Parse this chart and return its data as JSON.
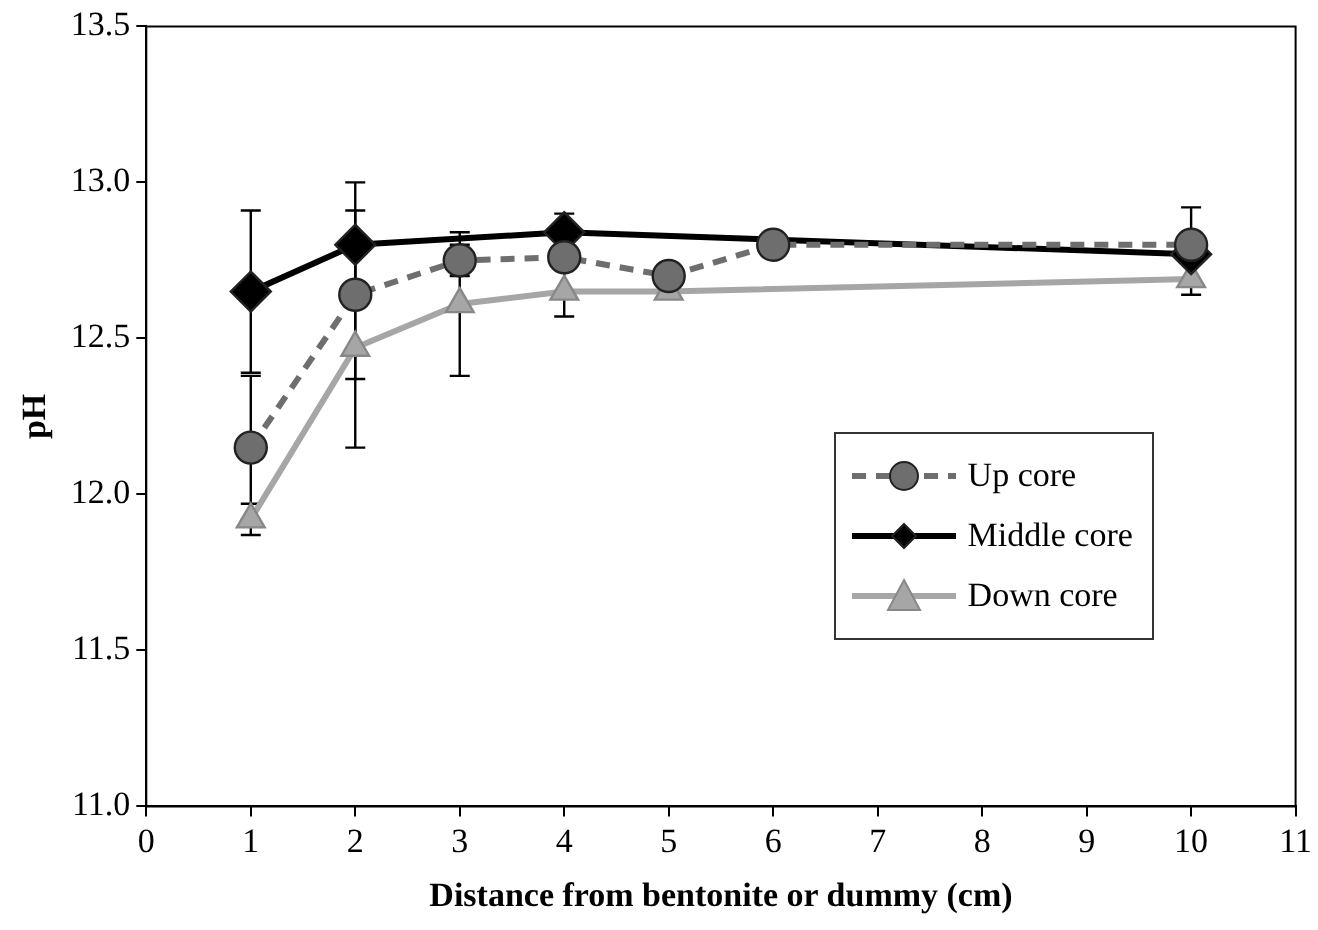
{
  "chart_data": {
    "type": "line",
    "xlabel": "Distance from bentonite or dummy (cm)",
    "ylabel": "pH",
    "xlim": [
      0,
      11
    ],
    "xticks": [
      0,
      1,
      2,
      3,
      4,
      5,
      6,
      7,
      8,
      9,
      10,
      11
    ],
    "ylim": [
      11.0,
      13.5
    ],
    "yticks": [
      {
        "value": 11,
        "label": "11.0"
      },
      {
        "value": 11.5,
        "label": "11.5"
      },
      {
        "value": 12,
        "label": "12.0"
      },
      {
        "value": 12.5,
        "label": "12.5"
      },
      {
        "value": 13,
        "label": "13.0"
      },
      {
        "value": 13.5,
        "label": "13.5"
      }
    ],
    "grid": false,
    "legend": "right",
    "series": [
      {
        "name": "Up core",
        "color": "#6e6e6e",
        "marker": "circle",
        "line_style": "dashed",
        "x": [
          1,
          2,
          3,
          4,
          5,
          6,
          10
        ],
        "values": [
          12.15,
          12.64,
          12.75,
          12.76,
          12.7,
          12.8,
          12.8
        ],
        "errors": [
          0.23,
          0.27,
          0.05,
          null,
          null,
          null,
          0.12
        ]
      },
      {
        "name": "Middle core",
        "color": "#000000",
        "marker": "diamond",
        "line_style": "solid",
        "x": [
          1,
          2,
          4,
          10
        ],
        "values": [
          12.65,
          12.8,
          12.84,
          12.77
        ],
        "errors": [
          0.26,
          0.2,
          0.06,
          null
        ]
      },
      {
        "name": "Down core",
        "color": "#a6a6a6",
        "marker": "triangle",
        "line_style": "solid",
        "x": [
          1,
          2,
          3,
          4,
          5,
          10
        ],
        "values": [
          11.92,
          12.47,
          12.61,
          12.65,
          12.65,
          12.69
        ],
        "errors": [
          0.05,
          0.32,
          0.23,
          0.08,
          null,
          0.05
        ]
      }
    ]
  }
}
